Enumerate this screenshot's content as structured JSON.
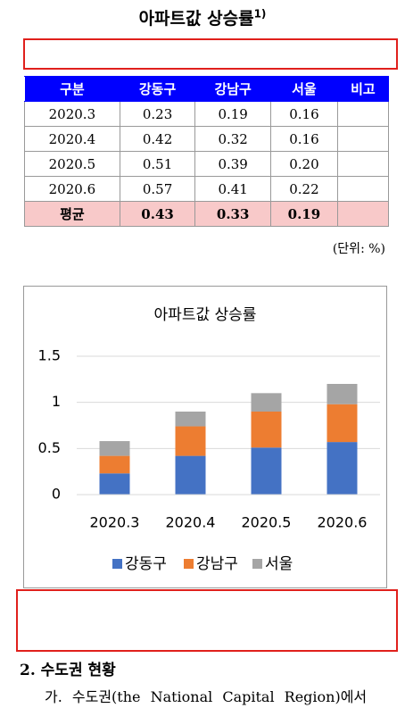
{
  "title": "아파트값 상승률",
  "title_note": "1)",
  "table": {
    "header": [
      "구분",
      "강동구",
      "강남구",
      "서울",
      "비고"
    ],
    "rows": [
      [
        "2020.3",
        "0.23",
        "0.19",
        "0.16",
        ""
      ],
      [
        "2020.4",
        "0.42",
        "0.32",
        "0.16",
        ""
      ],
      [
        "2020.5",
        "0.51",
        "0.39",
        "0.20",
        ""
      ],
      [
        "2020.6",
        "0.57",
        "0.41",
        "0.22",
        ""
      ],
      [
        "평균",
        "0.43",
        "0.33",
        "0.19",
        ""
      ]
    ]
  },
  "unit": "(단위: %)",
  "chart_data": {
    "type": "stacked_bar",
    "title": "아파트값 상승률",
    "categories": [
      "2020.3",
      "2020.4",
      "2020.5",
      "2020.6"
    ],
    "series": [
      {
        "name": "강동구",
        "color": "#4472c4",
        "values": [
          0.23,
          0.42,
          0.51,
          0.57
        ]
      },
      {
        "name": "강남구",
        "color": "#ed7d31",
        "values": [
          0.19,
          0.32,
          0.39,
          0.41
        ]
      },
      {
        "name": "서울",
        "color": "#a5a5a5",
        "values": [
          0.16,
          0.16,
          0.2,
          0.22
        ]
      }
    ],
    "ylim": [
      0,
      1.5
    ],
    "yticks": [
      0,
      0.5,
      1,
      1.5
    ],
    "grid": true,
    "legend": "bottom"
  },
  "section": {
    "heading": "2. 수도권 현황",
    "line": "가. 수도권(the National Capital Region)에서"
  }
}
